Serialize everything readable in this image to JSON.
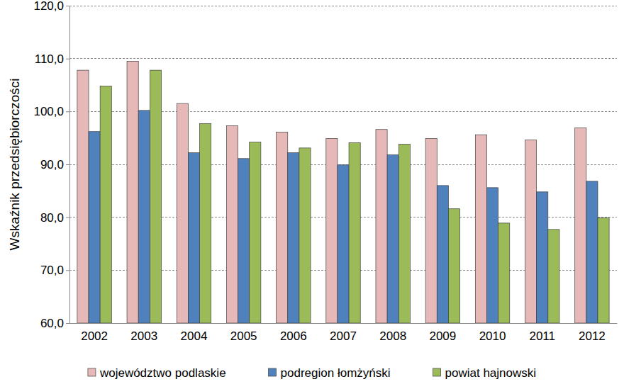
{
  "chart_data": {
    "type": "bar",
    "y_label": "Wskaźnik przedsiębiorczości",
    "categories": [
      "2002",
      "2003",
      "2004",
      "2005",
      "2006",
      "2007",
      "2008",
      "2009",
      "2010",
      "2011",
      "2012"
    ],
    "series": [
      {
        "name": "województwo podlaskie",
        "color": "#e6b9b8",
        "values": [
          107.8,
          109.5,
          101.5,
          97.3,
          96.1,
          94.9,
          96.6,
          94.9,
          95.6,
          94.6,
          96.9
        ]
      },
      {
        "name": "podregion łomżyński",
        "color": "#4f81bd",
        "values": [
          96.2,
          100.2,
          92.2,
          91.1,
          92.2,
          89.9,
          91.8,
          86.0,
          85.6,
          84.8,
          86.8
        ]
      },
      {
        "name": "powiat hajnowski",
        "color": "#9bbb59",
        "values": [
          104.8,
          107.8,
          97.7,
          94.2,
          93.1,
          94.1,
          93.8,
          81.6,
          78.9,
          77.7,
          79.9
        ]
      }
    ],
    "ylim": [
      60,
      120
    ],
    "yticks": [
      {
        "value": 60,
        "label": "60,0"
      },
      {
        "value": 70,
        "label": "70,0"
      },
      {
        "value": 80,
        "label": "80,0"
      },
      {
        "value": 90,
        "label": "90,0"
      },
      {
        "value": 100,
        "label": "100,0"
      },
      {
        "value": 110,
        "label": "110,0"
      },
      {
        "value": 120,
        "label": "120,0"
      }
    ],
    "grid": true,
    "legend": "bottom"
  }
}
